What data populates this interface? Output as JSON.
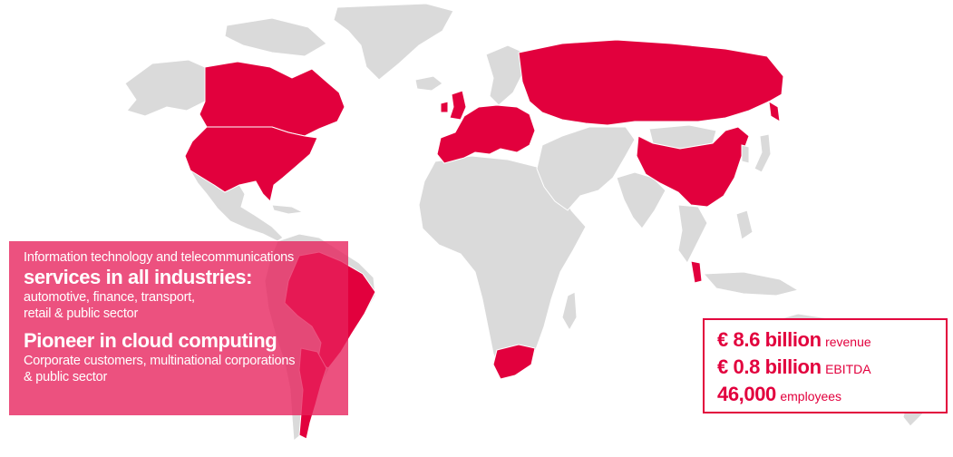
{
  "info": {
    "line1": "Information technology and telecommunications",
    "heading1": "services in all industries:",
    "line2a": "automotive, finance, transport,",
    "line2b": "retail & public sector",
    "heading2": "Pioneer in cloud computing",
    "line3a": "Corporate customers, multinational corporations",
    "line3b": "& public sector"
  },
  "stats": [
    {
      "value": "€ 8.6 billion",
      "label": "revenue"
    },
    {
      "value": "€ 0.8 billion",
      "label": "EBITDA"
    },
    {
      "value": "46,000",
      "label": "employees"
    }
  ],
  "colors": {
    "highlight": "#e2003d",
    "land": "#dadada",
    "info_box": "#e7205b"
  }
}
